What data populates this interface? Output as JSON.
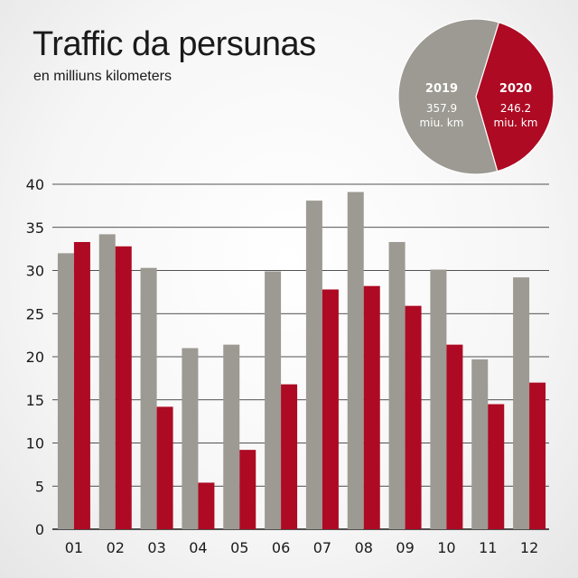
{
  "title": "Traffic da persunas",
  "subtitle": "en milliuns kilometers",
  "colors": {
    "y2019": "#9c9a92",
    "y2020": "#ae0a23",
    "grid": "#1a1a1a"
  },
  "pie": {
    "slices": [
      {
        "year": "2019",
        "value": 357.9,
        "value_label": "357.9",
        "unit": "miu. km"
      },
      {
        "year": "2020",
        "value": 246.2,
        "value_label": "246.2",
        "unit": "miu. km"
      }
    ]
  },
  "chart_data": [
    {
      "type": "bar",
      "categories": [
        "01",
        "02",
        "03",
        "04",
        "05",
        "06",
        "07",
        "08",
        "09",
        "10",
        "11",
        "12"
      ],
      "series": [
        {
          "name": "2019",
          "values": [
            32.0,
            34.2,
            30.3,
            21.0,
            21.4,
            29.9,
            38.1,
            39.1,
            33.3,
            30.1,
            19.7,
            29.2
          ]
        },
        {
          "name": "2020",
          "values": [
            33.3,
            32.8,
            14.2,
            5.4,
            9.2,
            16.8,
            27.8,
            28.2,
            25.9,
            21.4,
            14.5,
            17.0
          ]
        }
      ],
      "ylim": [
        0,
        40
      ],
      "yticks": [
        0,
        5,
        10,
        15,
        20,
        25,
        30,
        35,
        40
      ],
      "grid": true
    },
    {
      "type": "pie",
      "labels": [
        "2019",
        "2020"
      ],
      "values": [
        357.9,
        246.2
      ]
    }
  ]
}
